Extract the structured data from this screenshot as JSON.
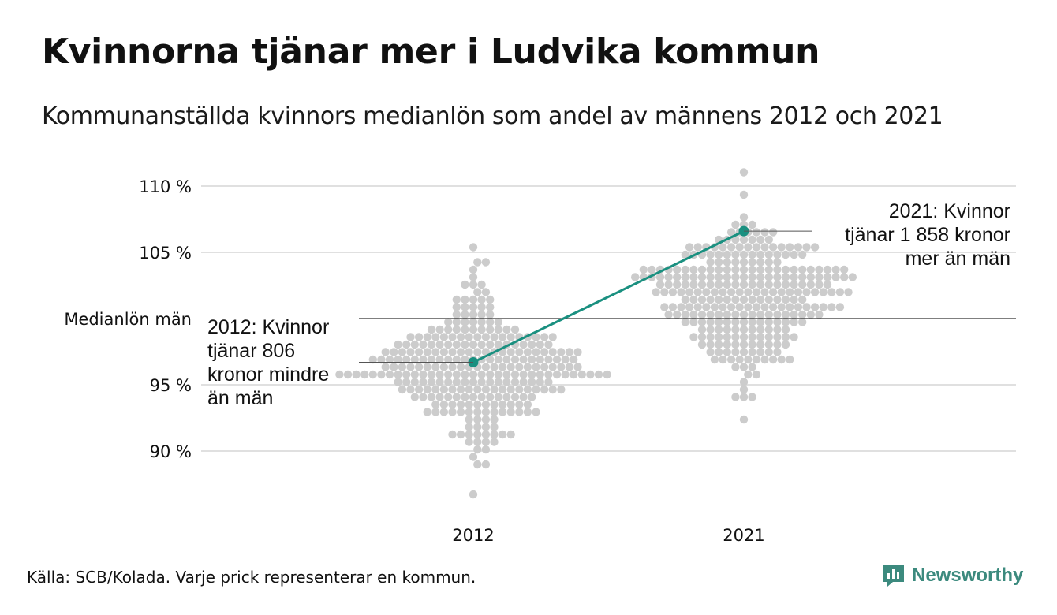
{
  "title": "Kvinnorna tjänar mer i Ludvika kommun",
  "subtitle": "Kommunanställda kvinnors medianlön som andel av männens 2012 och 2021",
  "source": "Källa: SCB/Kolada. Varje prick representerar en kommun.",
  "brand": {
    "name": "Newsworthy",
    "icon": "newsworthy-logo-icon",
    "color": "#3c8a7e"
  },
  "colors": {
    "dots": "#cccccc",
    "highlight": "#1a9080",
    "grid": "#e0e0e0",
    "reference": "#333333",
    "text": "#111111"
  },
  "chart_data": {
    "type": "scatter",
    "title": "Kvinnorna tjänar mer i Ludvika kommun",
    "subtitle": "Kommunanställda kvinnors medianlön som andel av männens 2012 och 2021",
    "categories": [
      "2012",
      "2021"
    ],
    "y_ticks": [
      90,
      95,
      105,
      110
    ],
    "y_tick_labels": [
      "90 %",
      "95 %",
      "105 %",
      "110 %"
    ],
    "ylim": [
      86,
      112
    ],
    "grid": true,
    "reference_line": {
      "value": 100,
      "label": "Medianlön män"
    },
    "distributions": [
      {
        "category": "2012",
        "min": 86.5,
        "max": 105.2,
        "center": 96.5,
        "spread": 2.8
      },
      {
        "category": "2021",
        "min": 92.5,
        "max": 111.3,
        "center": 101.5,
        "spread": 2.8
      }
    ],
    "highlight": {
      "name": "Ludvika kommun",
      "values": [
        {
          "x": "2012",
          "y": 96.7
        },
        {
          "x": "2021",
          "y": 106.6
        }
      ]
    },
    "annotations": [
      {
        "x": "2012",
        "y": 96.7,
        "lines": [
          "2012: Kvinnor",
          "tjänar 806",
          "kronor mindre",
          "än män"
        ]
      },
      {
        "x": "2021",
        "y": 106.6,
        "lines": [
          "2021: Kvinnor",
          "tjänar 1 858 kronor",
          "mer än män"
        ]
      }
    ]
  }
}
